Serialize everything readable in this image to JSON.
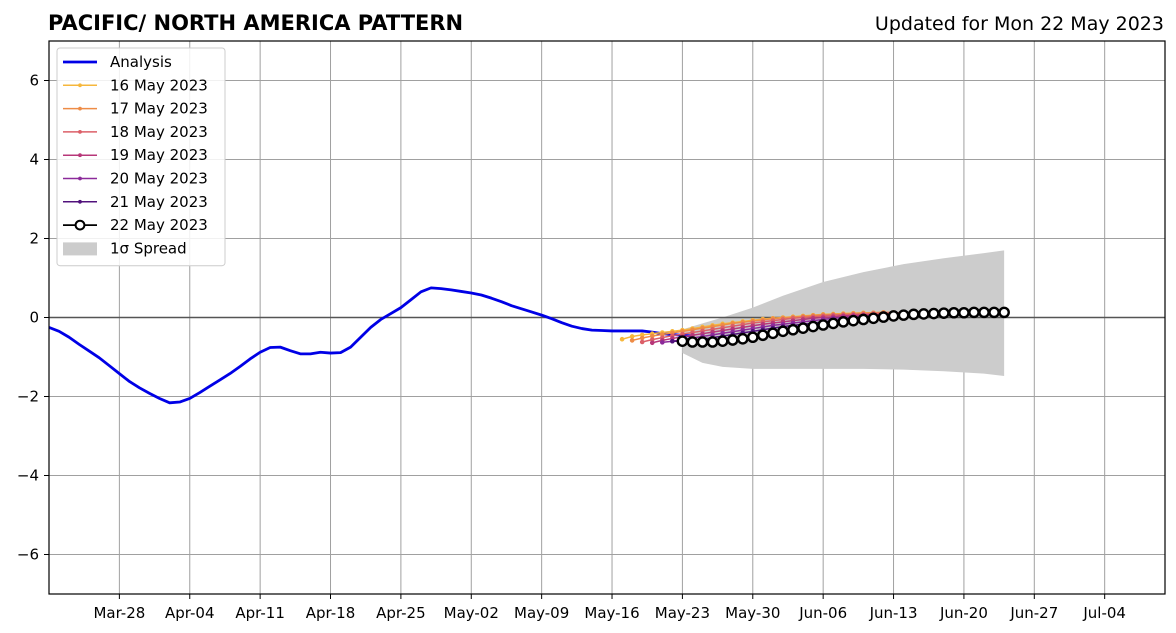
{
  "chart_data": {
    "type": "line",
    "title": "PACIFIC/ NORTH AMERICA PATTERN",
    "subtitle": "Updated for Mon 22 May 2023",
    "xlabel": "",
    "ylabel": "",
    "x_range": [
      "2023-03-21",
      "2023-07-10"
    ],
    "ylim": [
      -7,
      7
    ],
    "grid": true,
    "legend_position": "top-left",
    "x_ticks": [
      {
        "date": "2023-03-28",
        "label": "Mar-28"
      },
      {
        "date": "2023-04-04",
        "label": "Apr-04"
      },
      {
        "date": "2023-04-11",
        "label": "Apr-11"
      },
      {
        "date": "2023-04-18",
        "label": "Apr-18"
      },
      {
        "date": "2023-04-25",
        "label": "Apr-25"
      },
      {
        "date": "2023-05-02",
        "label": "May-02"
      },
      {
        "date": "2023-05-09",
        "label": "May-09"
      },
      {
        "date": "2023-05-16",
        "label": "May-16"
      },
      {
        "date": "2023-05-23",
        "label": "May-23"
      },
      {
        "date": "2023-05-30",
        "label": "May-30"
      },
      {
        "date": "2023-06-06",
        "label": "Jun-06"
      },
      {
        "date": "2023-06-13",
        "label": "Jun-13"
      },
      {
        "date": "2023-06-20",
        "label": "Jun-20"
      },
      {
        "date": "2023-06-27",
        "label": "Jun-27"
      },
      {
        "date": "2023-07-04",
        "label": "Jul-04"
      }
    ],
    "y_ticks": [
      {
        "value": -6,
        "label": "−6"
      },
      {
        "value": -4,
        "label": "−4"
      },
      {
        "value": -2,
        "label": "−2"
      },
      {
        "value": 0,
        "label": "0"
      },
      {
        "value": 2,
        "label": "2"
      },
      {
        "value": 4,
        "label": "4"
      },
      {
        "value": 6,
        "label": "6"
      }
    ],
    "analysis": {
      "name": "Analysis",
      "color": "#0000e6",
      "start": "2023-03-21",
      "values": [
        -0.25,
        -0.35,
        -0.5,
        -0.68,
        -0.85,
        -1.02,
        -1.22,
        -1.42,
        -1.62,
        -1.78,
        -1.92,
        -2.05,
        -2.16,
        -2.14,
        -2.05,
        -1.9,
        -1.74,
        -1.58,
        -1.42,
        -1.24,
        -1.05,
        -0.88,
        -0.76,
        -0.75,
        -0.84,
        -0.92,
        -0.92,
        -0.88,
        -0.9,
        -0.89,
        -0.75,
        -0.5,
        -0.25,
        -0.05,
        0.1,
        0.25,
        0.45,
        0.65,
        0.75,
        0.73,
        0.7,
        0.66,
        0.62,
        0.57,
        0.49,
        0.4,
        0.3,
        0.22,
        0.14,
        0.06,
        -0.03,
        -0.13,
        -0.22,
        -0.28,
        -0.32,
        -0.33,
        -0.34,
        -0.34,
        -0.34,
        -0.34,
        -0.37,
        -0.41,
        -0.43,
        -0.45,
        -0.47
      ]
    },
    "forecasts": [
      {
        "name": "16 May 2023",
        "color": "#f6b73c",
        "start": "2023-05-17",
        "values": [
          -0.55,
          -0.48,
          -0.44,
          -0.41,
          -0.38,
          -0.35,
          -0.32,
          -0.28,
          -0.24,
          -0.2,
          -0.16,
          -0.13,
          -0.1,
          -0.07,
          -0.04,
          -0.02,
          0.0,
          0.02,
          0.04,
          0.06,
          0.08,
          0.09,
          0.1,
          0.11,
          0.12,
          0.12,
          0.13
        ]
      },
      {
        "name": "17 May 2023",
        "color": "#ee8c46",
        "start": "2023-05-18",
        "values": [
          -0.58,
          -0.52,
          -0.47,
          -0.43,
          -0.39,
          -0.35,
          -0.31,
          -0.27,
          -0.23,
          -0.19,
          -0.15,
          -0.12,
          -0.09,
          -0.06,
          -0.03,
          -0.01,
          0.01,
          0.03,
          0.05,
          0.07,
          0.08,
          0.09,
          0.1,
          0.11,
          0.12,
          0.13,
          0.13
        ]
      },
      {
        "name": "18 May 2023",
        "color": "#dc5f68",
        "start": "2023-05-19",
        "values": [
          -0.62,
          -0.56,
          -0.51,
          -0.46,
          -0.42,
          -0.38,
          -0.34,
          -0.3,
          -0.26,
          -0.22,
          -0.18,
          -0.14,
          -0.11,
          -0.08,
          -0.05,
          -0.02,
          0.0,
          0.02,
          0.04,
          0.06,
          0.07,
          0.08,
          0.09,
          0.1,
          0.11,
          0.12,
          0.12
        ]
      },
      {
        "name": "19 May 2023",
        "color": "#b73779",
        "start": "2023-05-20",
        "values": [
          -0.64,
          -0.58,
          -0.53,
          -0.49,
          -0.45,
          -0.41,
          -0.37,
          -0.33,
          -0.29,
          -0.25,
          -0.21,
          -0.17,
          -0.14,
          -0.11,
          -0.08,
          -0.05,
          -0.02,
          0.0,
          0.02,
          0.04,
          0.05,
          0.06,
          0.07,
          0.08,
          0.09,
          0.1,
          0.1
        ]
      },
      {
        "name": "20 May 2023",
        "color": "#8c2a9a",
        "start": "2023-05-21",
        "values": [
          -0.63,
          -0.6,
          -0.56,
          -0.52,
          -0.48,
          -0.44,
          -0.4,
          -0.36,
          -0.32,
          -0.28,
          -0.24,
          -0.2,
          -0.17,
          -0.14,
          -0.11,
          -0.08,
          -0.05,
          -0.02,
          0.0,
          0.02,
          0.03,
          0.04,
          0.05,
          0.06,
          0.07,
          0.08,
          0.08
        ]
      },
      {
        "name": "21 May 2023",
        "color": "#51127c",
        "start": "2023-05-22",
        "values": [
          -0.6,
          -0.6,
          -0.58,
          -0.55,
          -0.51,
          -0.47,
          -0.43,
          -0.39,
          -0.35,
          -0.31,
          -0.27,
          -0.23,
          -0.2,
          -0.17,
          -0.14,
          -0.11,
          -0.08,
          -0.05,
          -0.02,
          0.0,
          0.02,
          0.03,
          0.04,
          0.05,
          0.06,
          0.07,
          0.07
        ]
      },
      {
        "name": "22 May 2023",
        "color": "#000000",
        "marker": "open-circle",
        "start": "2023-05-23",
        "values": [
          -0.6,
          -0.62,
          -0.62,
          -0.62,
          -0.6,
          -0.57,
          -0.54,
          -0.5,
          -0.45,
          -0.4,
          -0.35,
          -0.31,
          -0.27,
          -0.23,
          -0.19,
          -0.15,
          -0.11,
          -0.08,
          -0.05,
          -0.02,
          0.01,
          0.04,
          0.06,
          0.08,
          0.09,
          0.1,
          0.11,
          0.12,
          0.12,
          0.13,
          0.13,
          0.13,
          0.13
        ]
      }
    ],
    "spread": {
      "name": "1σ Spread",
      "color": "#cccccc",
      "dates": [
        "2023-05-23",
        "2023-05-25",
        "2023-05-27",
        "2023-05-30",
        "2023-06-02",
        "2023-06-06",
        "2023-06-10",
        "2023-06-14",
        "2023-06-18",
        "2023-06-22",
        "2023-06-24"
      ],
      "upper": [
        -0.3,
        -0.15,
        0.0,
        0.25,
        0.55,
        0.9,
        1.15,
        1.35,
        1.5,
        1.63,
        1.7
      ],
      "lower": [
        -0.9,
        -1.15,
        -1.25,
        -1.3,
        -1.3,
        -1.3,
        -1.3,
        -1.32,
        -1.36,
        -1.42,
        -1.48
      ]
    }
  }
}
